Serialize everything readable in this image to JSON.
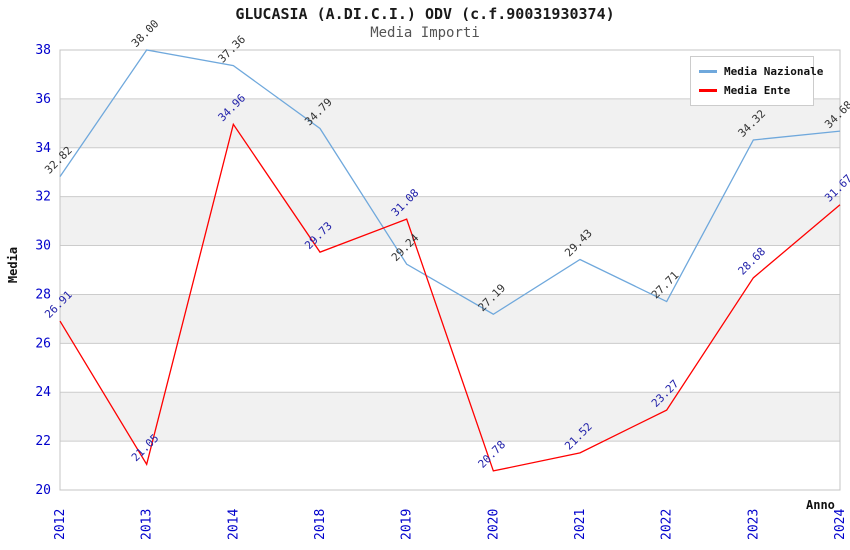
{
  "title": "GLUCASIA (A.DI.C.I.) ODV (c.f.90031930374)",
  "subtitle": "Media Importi",
  "chart_data": {
    "type": "line",
    "x": [
      "2012",
      "2013",
      "2014",
      "2018",
      "2019",
      "2020",
      "2021",
      "2022",
      "2023",
      "2024"
    ],
    "series": [
      {
        "name": "Media Nazionale",
        "color": "#6fa8dc",
        "label_color": "#333333",
        "values": [
          32.82,
          38.0,
          37.36,
          34.79,
          29.24,
          27.19,
          29.43,
          27.71,
          34.32,
          34.68
        ]
      },
      {
        "name": "Media Ente",
        "color": "#ff0000",
        "label_color": "#2222aa",
        "values": [
          26.91,
          21.05,
          34.96,
          29.73,
          31.08,
          20.78,
          21.52,
          23.27,
          28.68,
          31.67
        ]
      }
    ],
    "xlabel": "Anno",
    "ylabel": "Media",
    "ylim": [
      20,
      38
    ],
    "y_ticks": [
      20,
      22,
      24,
      26,
      28,
      30,
      32,
      34,
      36,
      38
    ],
    "grid": true,
    "legend_position": "top-right",
    "point_labels_rotation_deg": -45
  },
  "colors": {
    "tick_label": "#0000cc",
    "grid_line": "#cccccc",
    "band": "#f1f1f1",
    "plot_border": "#c4c4c4"
  }
}
